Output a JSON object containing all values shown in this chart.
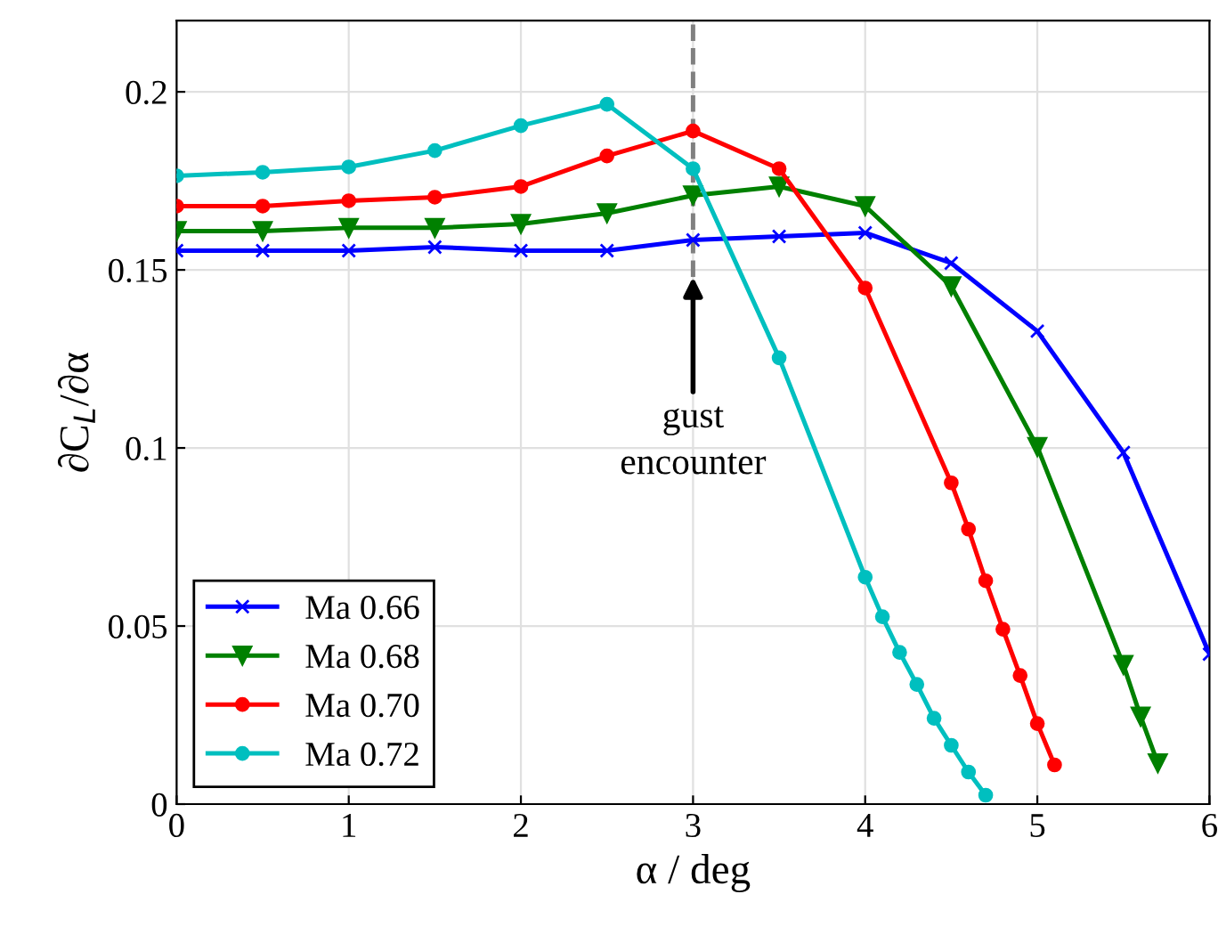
{
  "chart_data": {
    "type": "line",
    "xlabel": "α / deg",
    "ylabel": "∂C$_{L}$/∂α",
    "xlim": [
      0,
      6
    ],
    "ylim": [
      0,
      0.22
    ],
    "xticks": [
      0,
      1,
      2,
      3,
      4,
      5,
      6
    ],
    "yticks": [
      0,
      0.05,
      {
        "value": 0.1,
        "label": "0.1"
      },
      0.15,
      {
        "value": 0.2,
        "label": "0.2"
      }
    ],
    "grid": true,
    "legend": "bottom left",
    "annotations": [
      {
        "text": "gust\nencounter",
        "x": 3,
        "y": 0.148
      }
    ],
    "ref_lines": [
      {
        "axis": "x",
        "value": 3,
        "label": null,
        "color": "#808080",
        "line_style": "dashed"
      }
    ],
    "series": [
      {
        "name": "Ma 0.66",
        "color": "#0000ff",
        "marker": "cross",
        "x": [
          0,
          0.5,
          1,
          1.5,
          2,
          2.5,
          3,
          3.5,
          4,
          4.5,
          5,
          5.5,
          6
        ],
        "values": [
          0.1554,
          0.1554,
          0.1554,
          0.1564,
          0.1554,
          0.1554,
          0.1584,
          0.1594,
          0.1604,
          0.1519,
          0.1328,
          0.0987,
          0.0421
        ]
      },
      {
        "name": "Ma 0.68",
        "color": "#008000",
        "marker": "triangle",
        "x": [
          0,
          0.5,
          1,
          1.5,
          2,
          2.5,
          3,
          3.5,
          4,
          4.5,
          5,
          5.5,
          5.6,
          5.7
        ],
        "values": [
          0.1609,
          0.1609,
          0.1618,
          0.1618,
          0.1629,
          0.1659,
          0.1709,
          0.1734,
          0.1679,
          0.1454,
          0.1003,
          0.0391,
          0.0246,
          0.0115
        ]
      },
      {
        "name": "Ma 0.70",
        "color": "#ff0000",
        "marker": "circle",
        "x": [
          0,
          0.5,
          1,
          1.5,
          2,
          2.5,
          3,
          3.5,
          4,
          4.5,
          4.6,
          4.7,
          4.8,
          4.9,
          5,
          5.1
        ],
        "values": [
          0.1679,
          0.1679,
          0.1694,
          0.1704,
          0.1734,
          0.182,
          0.189,
          0.1784,
          0.1449,
          0.0902,
          0.0772,
          0.0627,
          0.0491,
          0.0361,
          0.0226,
          0.011
        ]
      },
      {
        "name": "Ma 0.72",
        "color": "#00bfbf",
        "marker": "circle",
        "x": [
          0,
          0.5,
          1,
          1.5,
          2,
          2.5,
          3,
          3.5,
          4,
          4.1,
          4.2,
          4.3,
          4.4,
          4.5,
          4.6,
          4.7
        ],
        "values": [
          0.1764,
          0.1774,
          0.1789,
          0.1835,
          0.1905,
          0.1965,
          0.1784,
          0.1253,
          0.0637,
          0.0526,
          0.0426,
          0.0336,
          0.0241,
          0.0165,
          0.009,
          0.0025
        ]
      }
    ]
  }
}
